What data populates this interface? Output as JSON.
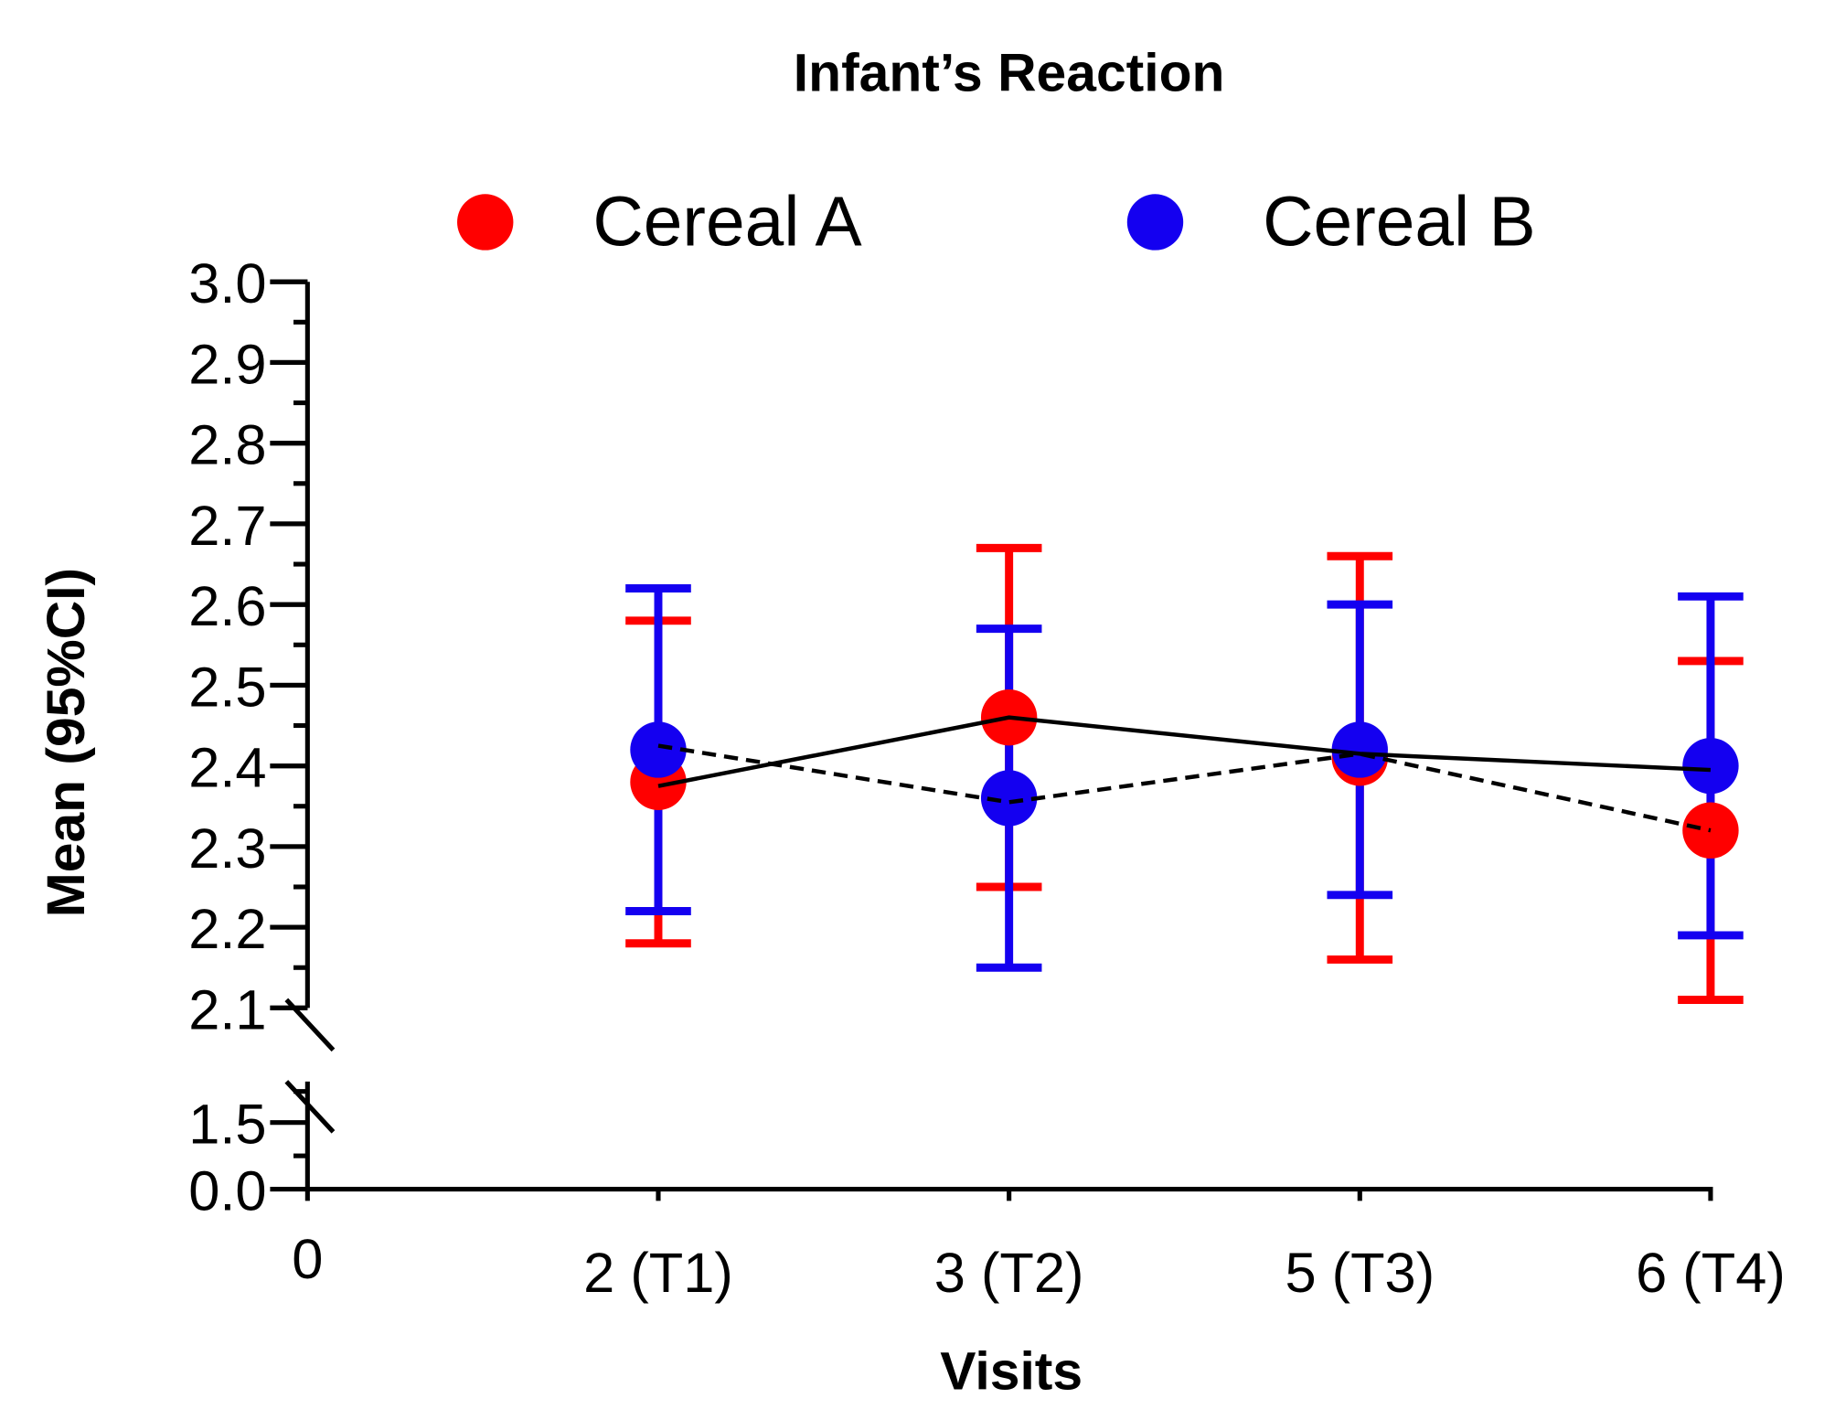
{
  "chart_data": {
    "type": "scatter",
    "title": "Infant’s Reaction",
    "xlabel": "Visits",
    "ylabel": "Mean (95%CI)",
    "x_origin_label": "0",
    "categories": [
      "2 (T1)",
      "3 (T2)",
      "5 (T3)",
      "6 (T4)"
    ],
    "y_axis": {
      "broken": true,
      "upper_range": [
        2.1,
        3.0
      ],
      "upper_ticks": [
        "2.1",
        "2.2",
        "2.3",
        "2.4",
        "2.5",
        "2.6",
        "2.7",
        "2.8",
        "2.9",
        "3.0"
      ],
      "lower_range": [
        0.0,
        1.5
      ],
      "lower_ticks": [
        "0.0",
        "1.5"
      ]
    },
    "legend": {
      "placement": "top"
    },
    "series": [
      {
        "name": "Cereal A",
        "color": "#ff0000",
        "mean": [
          2.38,
          2.46,
          2.41,
          2.32
        ],
        "ci_low": [
          2.18,
          2.25,
          2.16,
          2.11
        ],
        "ci_high": [
          2.58,
          2.67,
          2.66,
          2.53
        ]
      },
      {
        "name": "Cereal B",
        "color": "#1400f0",
        "mean": [
          2.42,
          2.36,
          2.42,
          2.4
        ],
        "ci_low": [
          2.22,
          2.15,
          2.24,
          2.19
        ],
        "ci_high": [
          2.62,
          2.57,
          2.6,
          2.61
        ]
      }
    ],
    "connecting_lines": [
      {
        "style": "solid",
        "values": [
          2.375,
          2.46,
          2.415,
          2.395
        ]
      },
      {
        "style": "dashed",
        "values": [
          2.425,
          2.355,
          2.415,
          2.32
        ]
      }
    ]
  }
}
